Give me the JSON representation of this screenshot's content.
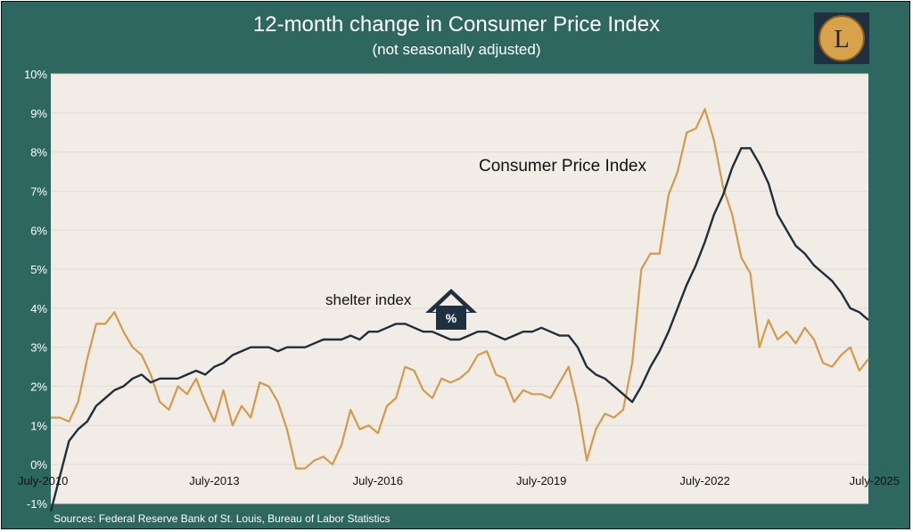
{
  "chart_data": {
    "type": "line",
    "title": "12-month change in Consumer Price Index",
    "subtitle": "(not seasonally adjusted)",
    "source": "Sources: Federal Reserve Bank of St. Louis, Bureau of Labor Statistics",
    "ylim": [
      -1,
      10
    ],
    "y_ticks": [
      "-1%",
      "0%",
      "1%",
      "2%",
      "3%",
      "4%",
      "5%",
      "6%",
      "7%",
      "8%",
      "9%",
      "10%"
    ],
    "x_range": [
      "2010-07",
      "2025-07"
    ],
    "x_ticks": [
      "July-2010",
      "July-2013",
      "July-2016",
      "July-2019",
      "July-2022",
      "July-2025"
    ],
    "grid": true,
    "logo": "L",
    "annotations": {
      "cpi": "Consumer Price Index",
      "shelter": "shelter index",
      "house_icon": "house-percent-icon",
      "house_symbol": "%"
    },
    "colors": {
      "background": "#2e6660",
      "plot_bg": "#f1ede6",
      "cpi": "#1f2f3a",
      "shelter": "#d49a4a",
      "logo_bg": "#1f3040",
      "logo_coin": "#d8a24a"
    },
    "series": [
      {
        "key": "cpi",
        "points": [
          [
            "2010-07",
            -1.2
          ],
          [
            "2010-09",
            -0.3
          ],
          [
            "2010-11",
            0.6
          ],
          [
            "2011-01",
            0.9
          ],
          [
            "2011-03",
            1.1
          ],
          [
            "2011-05",
            1.5
          ],
          [
            "2011-07",
            1.7
          ],
          [
            "2011-09",
            1.9
          ],
          [
            "2011-11",
            2.0
          ],
          [
            "2012-01",
            2.2
          ],
          [
            "2012-03",
            2.3
          ],
          [
            "2012-05",
            2.1
          ],
          [
            "2012-07",
            2.2
          ],
          [
            "2012-09",
            2.2
          ],
          [
            "2012-11",
            2.2
          ],
          [
            "2013-01",
            2.3
          ],
          [
            "2013-03",
            2.4
          ],
          [
            "2013-05",
            2.3
          ],
          [
            "2013-07",
            2.5
          ],
          [
            "2013-09",
            2.6
          ],
          [
            "2013-11",
            2.8
          ],
          [
            "2014-01",
            2.9
          ],
          [
            "2014-03",
            3.0
          ],
          [
            "2014-05",
            3.0
          ],
          [
            "2014-07",
            3.0
          ],
          [
            "2014-09",
            2.9
          ],
          [
            "2014-11",
            3.0
          ],
          [
            "2015-01",
            3.0
          ],
          [
            "2015-03",
            3.0
          ],
          [
            "2015-05",
            3.1
          ],
          [
            "2015-07",
            3.2
          ],
          [
            "2015-09",
            3.2
          ],
          [
            "2015-11",
            3.2
          ],
          [
            "2016-01",
            3.3
          ],
          [
            "2016-03",
            3.2
          ],
          [
            "2016-05",
            3.4
          ],
          [
            "2016-07",
            3.4
          ],
          [
            "2016-09",
            3.5
          ],
          [
            "2016-11",
            3.6
          ],
          [
            "2017-01",
            3.6
          ],
          [
            "2017-03",
            3.5
          ],
          [
            "2017-05",
            3.4
          ],
          [
            "2017-07",
            3.4
          ],
          [
            "2017-09",
            3.3
          ],
          [
            "2017-11",
            3.2
          ],
          [
            "2018-01",
            3.2
          ],
          [
            "2018-03",
            3.3
          ],
          [
            "2018-05",
            3.4
          ],
          [
            "2018-07",
            3.4
          ],
          [
            "2018-09",
            3.3
          ],
          [
            "2018-11",
            3.2
          ],
          [
            "2019-01",
            3.3
          ],
          [
            "2019-03",
            3.4
          ],
          [
            "2019-05",
            3.4
          ],
          [
            "2019-07",
            3.5
          ],
          [
            "2019-09",
            3.4
          ],
          [
            "2019-11",
            3.3
          ],
          [
            "2020-01",
            3.3
          ],
          [
            "2020-03",
            3.0
          ],
          [
            "2020-05",
            2.5
          ],
          [
            "2020-07",
            2.3
          ],
          [
            "2020-09",
            2.2
          ],
          [
            "2020-11",
            2.0
          ],
          [
            "2021-01",
            1.8
          ],
          [
            "2021-03",
            1.6
          ],
          [
            "2021-05",
            2.0
          ],
          [
            "2021-07",
            2.5
          ],
          [
            "2021-09",
            2.9
          ],
          [
            "2021-11",
            3.4
          ],
          [
            "2022-01",
            4.0
          ],
          [
            "2022-03",
            4.6
          ],
          [
            "2022-05",
            5.1
          ],
          [
            "2022-07",
            5.7
          ],
          [
            "2022-09",
            6.4
          ],
          [
            "2022-11",
            6.9
          ],
          [
            "2023-01",
            7.6
          ],
          [
            "2023-03",
            8.1
          ],
          [
            "2023-05",
            8.1
          ],
          [
            "2023-07",
            7.7
          ],
          [
            "2023-09",
            7.2
          ],
          [
            "2023-11",
            6.4
          ],
          [
            "2024-01",
            6.0
          ],
          [
            "2024-03",
            5.6
          ],
          [
            "2024-05",
            5.4
          ],
          [
            "2024-07",
            5.1
          ],
          [
            "2024-09",
            4.9
          ],
          [
            "2024-11",
            4.7
          ],
          [
            "2025-01",
            4.4
          ],
          [
            "2025-03",
            4.0
          ],
          [
            "2025-05",
            3.9
          ],
          [
            "2025-07",
            3.7
          ]
        ]
      },
      {
        "key": "shelter",
        "points": [
          [
            "2010-07",
            1.2
          ],
          [
            "2010-09",
            1.2
          ],
          [
            "2010-11",
            1.1
          ],
          [
            "2011-01",
            1.6
          ],
          [
            "2011-03",
            2.7
          ],
          [
            "2011-05",
            3.6
          ],
          [
            "2011-07",
            3.6
          ],
          [
            "2011-09",
            3.9
          ],
          [
            "2011-11",
            3.4
          ],
          [
            "2012-01",
            3.0
          ],
          [
            "2012-03",
            2.8
          ],
          [
            "2012-05",
            2.3
          ],
          [
            "2012-07",
            1.6
          ],
          [
            "2012-09",
            1.4
          ],
          [
            "2012-11",
            2.0
          ],
          [
            "2013-01",
            1.8
          ],
          [
            "2013-03",
            2.2
          ],
          [
            "2013-05",
            1.6
          ],
          [
            "2013-07",
            1.1
          ],
          [
            "2013-09",
            1.9
          ],
          [
            "2013-11",
            1.0
          ],
          [
            "2014-01",
            1.5
          ],
          [
            "2014-03",
            1.2
          ],
          [
            "2014-05",
            2.1
          ],
          [
            "2014-07",
            2.0
          ],
          [
            "2014-09",
            1.6
          ],
          [
            "2014-11",
            0.9
          ],
          [
            "2015-01",
            -0.1
          ],
          [
            "2015-03",
            -0.1
          ],
          [
            "2015-05",
            0.1
          ],
          [
            "2015-07",
            0.2
          ],
          [
            "2015-09",
            0.0
          ],
          [
            "2015-11",
            0.5
          ],
          [
            "2016-01",
            1.4
          ],
          [
            "2016-03",
            0.9
          ],
          [
            "2016-05",
            1.0
          ],
          [
            "2016-07",
            0.8
          ],
          [
            "2016-09",
            1.5
          ],
          [
            "2016-11",
            1.7
          ],
          [
            "2017-01",
            2.5
          ],
          [
            "2017-03",
            2.4
          ],
          [
            "2017-05",
            1.9
          ],
          [
            "2017-07",
            1.7
          ],
          [
            "2017-09",
            2.2
          ],
          [
            "2017-11",
            2.1
          ],
          [
            "2018-01",
            2.2
          ],
          [
            "2018-03",
            2.4
          ],
          [
            "2018-05",
            2.8
          ],
          [
            "2018-07",
            2.9
          ],
          [
            "2018-09",
            2.3
          ],
          [
            "2018-11",
            2.2
          ],
          [
            "2019-01",
            1.6
          ],
          [
            "2019-03",
            1.9
          ],
          [
            "2019-05",
            1.8
          ],
          [
            "2019-07",
            1.8
          ],
          [
            "2019-09",
            1.7
          ],
          [
            "2019-11",
            2.1
          ],
          [
            "2020-01",
            2.5
          ],
          [
            "2020-03",
            1.5
          ],
          [
            "2020-05",
            0.1
          ],
          [
            "2020-07",
            0.9
          ],
          [
            "2020-09",
            1.3
          ],
          [
            "2020-11",
            1.2
          ],
          [
            "2021-01",
            1.4
          ],
          [
            "2021-03",
            2.6
          ],
          [
            "2021-05",
            5.0
          ],
          [
            "2021-07",
            5.4
          ],
          [
            "2021-09",
            5.4
          ],
          [
            "2021-11",
            6.9
          ],
          [
            "2022-01",
            7.5
          ],
          [
            "2022-03",
            8.5
          ],
          [
            "2022-05",
            8.6
          ],
          [
            "2022-07",
            9.1
          ],
          [
            "2022-09",
            8.3
          ],
          [
            "2022-11",
            7.1
          ],
          [
            "2023-01",
            6.4
          ],
          [
            "2023-03",
            5.3
          ],
          [
            "2023-05",
            4.9
          ],
          [
            "2023-07",
            3.0
          ],
          [
            "2023-09",
            3.7
          ],
          [
            "2023-11",
            3.2
          ],
          [
            "2024-01",
            3.4
          ],
          [
            "2024-03",
            3.1
          ],
          [
            "2024-05",
            3.5
          ],
          [
            "2024-07",
            3.2
          ],
          [
            "2024-09",
            2.6
          ],
          [
            "2024-11",
            2.5
          ],
          [
            "2025-01",
            2.8
          ],
          [
            "2025-03",
            3.0
          ],
          [
            "2025-05",
            2.4
          ],
          [
            "2025-07",
            2.7
          ]
        ]
      }
    ]
  }
}
